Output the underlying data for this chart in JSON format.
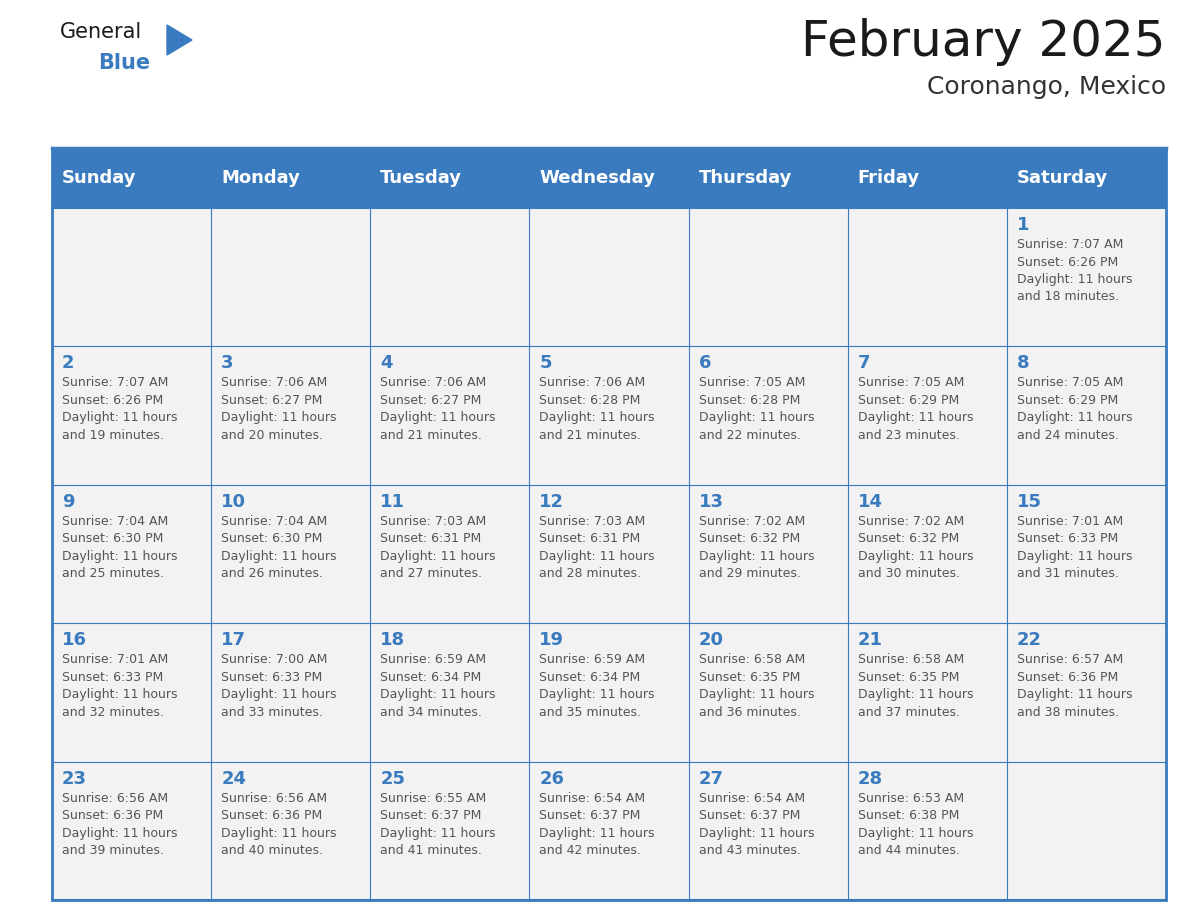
{
  "title": "February 2025",
  "subtitle": "Coronango, Mexico",
  "header_color": "#3a7abf",
  "header_text_color": "#ffffff",
  "cell_bg_color": "#f2f2f2",
  "border_color": "#3a7abf",
  "day_names": [
    "Sunday",
    "Monday",
    "Tuesday",
    "Wednesday",
    "Thursday",
    "Friday",
    "Saturday"
  ],
  "title_color": "#1a1a1a",
  "subtitle_color": "#333333",
  "day_number_color": "#3a7abf",
  "cell_text_color": "#555555",
  "logo_general_color": "#1a1a1a",
  "logo_blue_color": "#3a7abf",
  "calendar": [
    [
      null,
      null,
      null,
      null,
      null,
      null,
      {
        "day": 1,
        "sunrise": "7:07 AM",
        "sunset": "6:26 PM",
        "daylight": "11 hours and 18 minutes."
      }
    ],
    [
      {
        "day": 2,
        "sunrise": "7:07 AM",
        "sunset": "6:26 PM",
        "daylight": "11 hours and 19 minutes."
      },
      {
        "day": 3,
        "sunrise": "7:06 AM",
        "sunset": "6:27 PM",
        "daylight": "11 hours and 20 minutes."
      },
      {
        "day": 4,
        "sunrise": "7:06 AM",
        "sunset": "6:27 PM",
        "daylight": "11 hours and 21 minutes."
      },
      {
        "day": 5,
        "sunrise": "7:06 AM",
        "sunset": "6:28 PM",
        "daylight": "11 hours and 21 minutes."
      },
      {
        "day": 6,
        "sunrise": "7:05 AM",
        "sunset": "6:28 PM",
        "daylight": "11 hours and 22 minutes."
      },
      {
        "day": 7,
        "sunrise": "7:05 AM",
        "sunset": "6:29 PM",
        "daylight": "11 hours and 23 minutes."
      },
      {
        "day": 8,
        "sunrise": "7:05 AM",
        "sunset": "6:29 PM",
        "daylight": "11 hours and 24 minutes."
      }
    ],
    [
      {
        "day": 9,
        "sunrise": "7:04 AM",
        "sunset": "6:30 PM",
        "daylight": "11 hours and 25 minutes."
      },
      {
        "day": 10,
        "sunrise": "7:04 AM",
        "sunset": "6:30 PM",
        "daylight": "11 hours and 26 minutes."
      },
      {
        "day": 11,
        "sunrise": "7:03 AM",
        "sunset": "6:31 PM",
        "daylight": "11 hours and 27 minutes."
      },
      {
        "day": 12,
        "sunrise": "7:03 AM",
        "sunset": "6:31 PM",
        "daylight": "11 hours and 28 minutes."
      },
      {
        "day": 13,
        "sunrise": "7:02 AM",
        "sunset": "6:32 PM",
        "daylight": "11 hours and 29 minutes."
      },
      {
        "day": 14,
        "sunrise": "7:02 AM",
        "sunset": "6:32 PM",
        "daylight": "11 hours and 30 minutes."
      },
      {
        "day": 15,
        "sunrise": "7:01 AM",
        "sunset": "6:33 PM",
        "daylight": "11 hours and 31 minutes."
      }
    ],
    [
      {
        "day": 16,
        "sunrise": "7:01 AM",
        "sunset": "6:33 PM",
        "daylight": "11 hours and 32 minutes."
      },
      {
        "day": 17,
        "sunrise": "7:00 AM",
        "sunset": "6:33 PM",
        "daylight": "11 hours and 33 minutes."
      },
      {
        "day": 18,
        "sunrise": "6:59 AM",
        "sunset": "6:34 PM",
        "daylight": "11 hours and 34 minutes."
      },
      {
        "day": 19,
        "sunrise": "6:59 AM",
        "sunset": "6:34 PM",
        "daylight": "11 hours and 35 minutes."
      },
      {
        "day": 20,
        "sunrise": "6:58 AM",
        "sunset": "6:35 PM",
        "daylight": "11 hours and 36 minutes."
      },
      {
        "day": 21,
        "sunrise": "6:58 AM",
        "sunset": "6:35 PM",
        "daylight": "11 hours and 37 minutes."
      },
      {
        "day": 22,
        "sunrise": "6:57 AM",
        "sunset": "6:36 PM",
        "daylight": "11 hours and 38 minutes."
      }
    ],
    [
      {
        "day": 23,
        "sunrise": "6:56 AM",
        "sunset": "6:36 PM",
        "daylight": "11 hours and 39 minutes."
      },
      {
        "day": 24,
        "sunrise": "6:56 AM",
        "sunset": "6:36 PM",
        "daylight": "11 hours and 40 minutes."
      },
      {
        "day": 25,
        "sunrise": "6:55 AM",
        "sunset": "6:37 PM",
        "daylight": "11 hours and 41 minutes."
      },
      {
        "day": 26,
        "sunrise": "6:54 AM",
        "sunset": "6:37 PM",
        "daylight": "11 hours and 42 minutes."
      },
      {
        "day": 27,
        "sunrise": "6:54 AM",
        "sunset": "6:37 PM",
        "daylight": "11 hours and 43 minutes."
      },
      {
        "day": 28,
        "sunrise": "6:53 AM",
        "sunset": "6:38 PM",
        "daylight": "11 hours and 44 minutes."
      },
      null
    ]
  ],
  "fig_width": 11.88,
  "fig_height": 9.18,
  "dpi": 100
}
